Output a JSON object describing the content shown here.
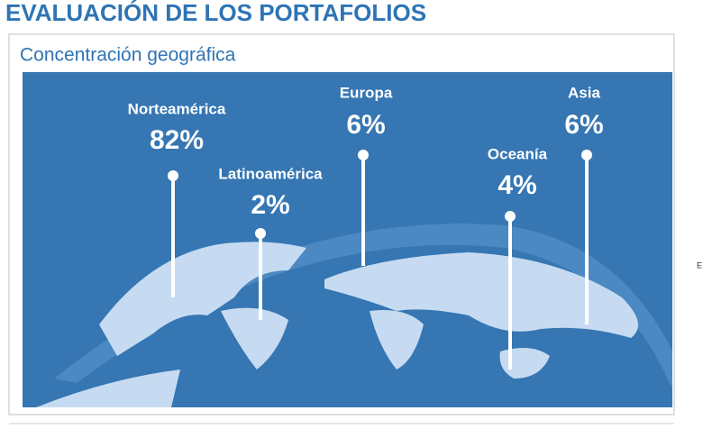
{
  "header": {
    "title": "EVALUACIÓN DE LOS PORTAFOLIOS",
    "subtitle": "Concentración geográfica"
  },
  "regions": [
    {
      "label": "Norteamérica",
      "value": "82%"
    },
    {
      "label": "Latinoamérica",
      "value": "2%"
    },
    {
      "label": "Europa",
      "value": "6%"
    },
    {
      "label": "Oceanía",
      "value": "4%"
    },
    {
      "label": "Asia",
      "value": "6%"
    }
  ],
  "edge_text": "E"
}
